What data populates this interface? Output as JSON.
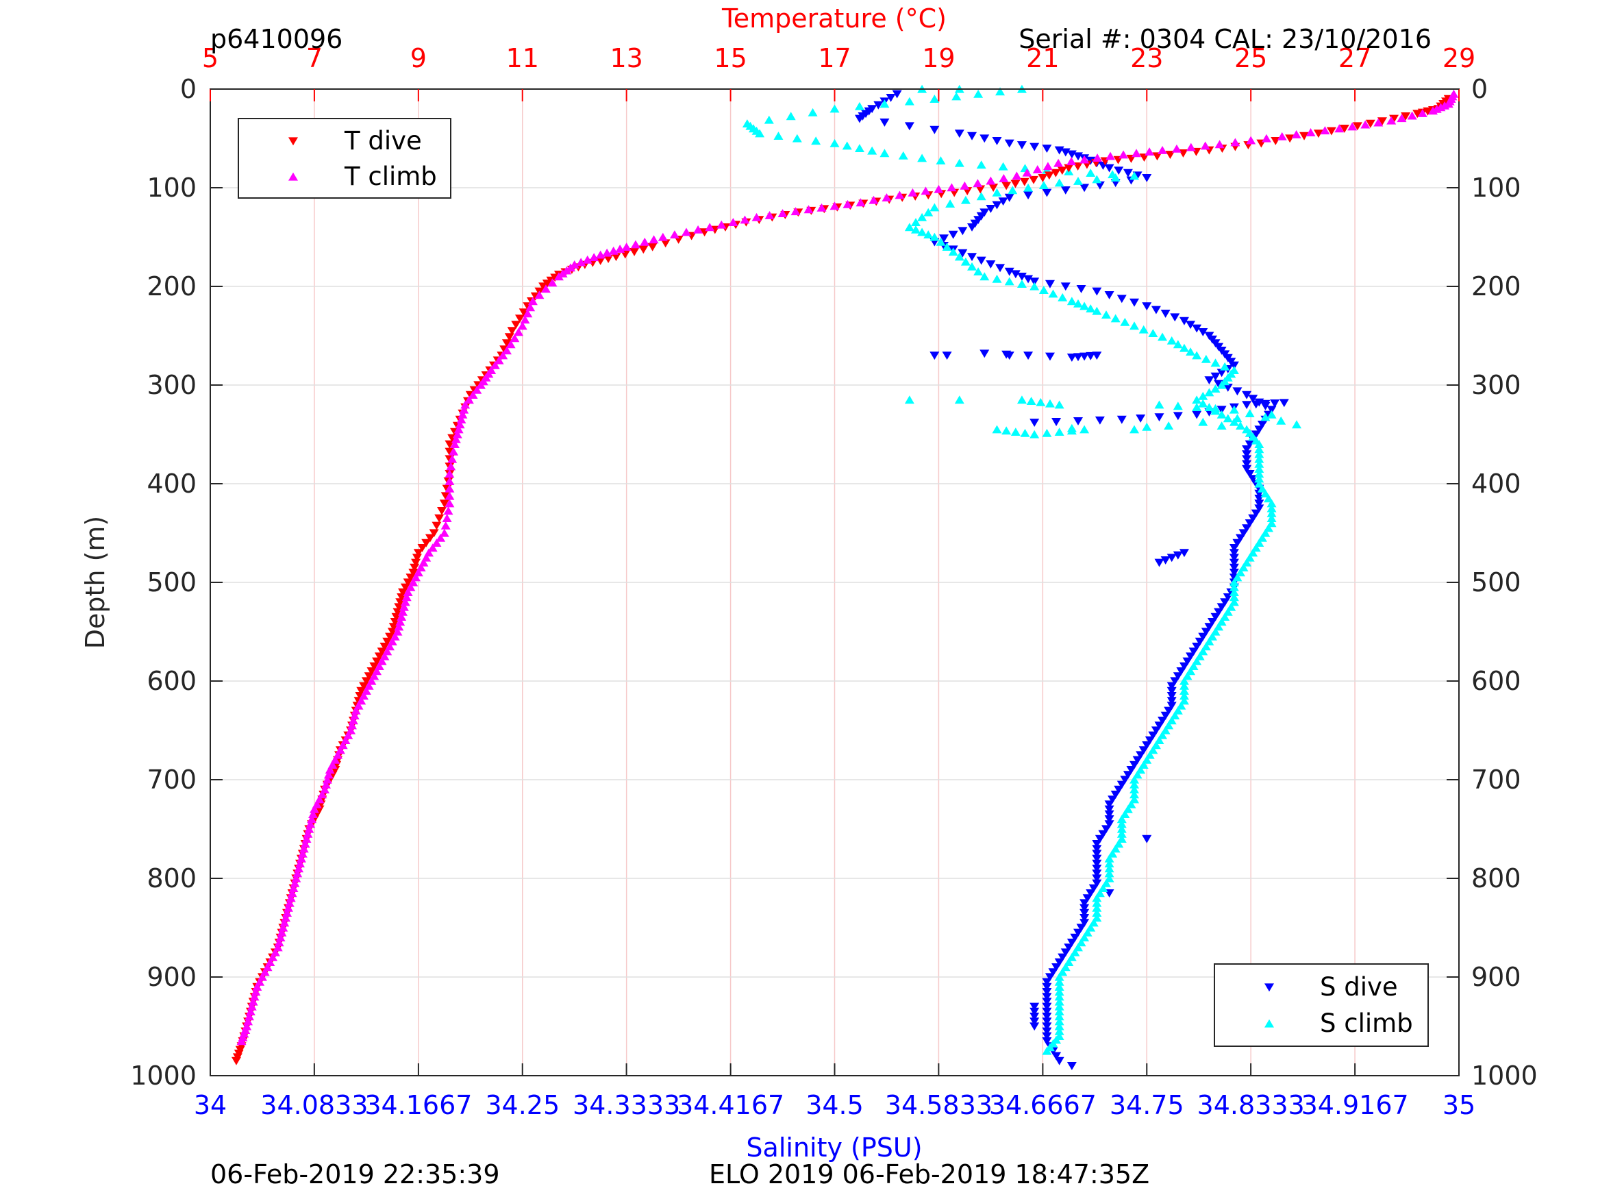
{
  "header": {
    "profile_id": "p6410096",
    "serial": "Serial #: 0304  CAL: 23/10/2016"
  },
  "footer": {
    "timestamp_left": "06-Feb-2019 22:35:39",
    "mission": "ELO 2019 06-Feb-2019 18:47:35Z"
  },
  "colors": {
    "t_dive": "#ff0000",
    "t_climb": "#ff00ff",
    "s_dive": "#0000ff",
    "s_climb": "#00ffff",
    "temp_axis": "#ff0000",
    "sal_axis": "#0000ff",
    "depth_axis": "#262626"
  },
  "chart_data": {
    "type": "scatter",
    "title": "",
    "xlabel_top": "Temperature (°C)",
    "xlabel_bottom": "Salinity (PSU)",
    "ylabel": "Depth (m)",
    "temp_range": [
      5,
      29
    ],
    "temp_ticks": [
      "5",
      "7",
      "9",
      "11",
      "13",
      "15",
      "17",
      "19",
      "21",
      "23",
      "25",
      "27",
      "29"
    ],
    "salinity_range": [
      34,
      35
    ],
    "salinity_ticks": [
      "34",
      "34.0833",
      "34.1667",
      "34.25",
      "34.3333",
      "34.4167",
      "34.5",
      "34.5833",
      "34.6667",
      "34.75",
      "34.8333",
      "34.9167",
      "35"
    ],
    "depth_range": [
      0,
      1000
    ],
    "depth_ticks": [
      "0",
      "100",
      "200",
      "300",
      "400",
      "500",
      "600",
      "700",
      "800",
      "900",
      "1000"
    ],
    "y_reversed": true,
    "grid": true,
    "legend_temperature": {
      "placement": "top-left",
      "entries": [
        "T dive",
        "T climb"
      ]
    },
    "legend_salinity": {
      "placement": "bottom-right",
      "entries": [
        "S dive",
        "S climb"
      ]
    },
    "series": [
      {
        "name": "T dive",
        "axis": "temperature",
        "marker": "triangle-down",
        "points": [
          [
            28.8,
            10
          ],
          [
            28.6,
            20
          ],
          [
            28.2,
            25
          ],
          [
            27.3,
            35
          ],
          [
            26.3,
            45
          ],
          [
            25.2,
            55
          ],
          [
            24.2,
            62
          ],
          [
            23.2,
            68
          ],
          [
            22.2,
            73
          ],
          [
            21.5,
            80
          ],
          [
            21.0,
            90
          ],
          [
            20.3,
            98
          ],
          [
            19.3,
            105
          ],
          [
            18.3,
            110
          ],
          [
            17.3,
            118
          ],
          [
            16.3,
            125
          ],
          [
            15.3,
            135
          ],
          [
            14.5,
            145
          ],
          [
            13.5,
            160
          ],
          [
            12.8,
            170
          ],
          [
            12.2,
            178
          ],
          [
            11.7,
            188
          ],
          [
            11.4,
            200
          ],
          [
            11.1,
            220
          ],
          [
            10.8,
            245
          ],
          [
            10.6,
            270
          ],
          [
            10.3,
            290
          ],
          [
            10.0,
            310
          ],
          [
            9.8,
            335
          ],
          [
            9.6,
            360
          ],
          [
            9.6,
            390
          ],
          [
            9.5,
            420
          ],
          [
            9.3,
            450
          ],
          [
            9.0,
            470
          ],
          [
            8.9,
            490
          ],
          [
            8.7,
            510
          ],
          [
            8.6,
            530
          ],
          [
            8.5,
            550
          ],
          [
            8.3,
            570
          ],
          [
            8.1,
            590
          ],
          [
            7.9,
            610
          ],
          [
            7.8,
            630
          ],
          [
            7.7,
            650
          ],
          [
            7.5,
            670
          ],
          [
            7.4,
            690
          ],
          [
            7.2,
            710
          ],
          [
            7.1,
            730
          ],
          [
            6.9,
            750
          ],
          [
            6.8,
            770
          ],
          [
            6.7,
            790
          ],
          [
            6.6,
            810
          ],
          [
            6.5,
            830
          ],
          [
            6.4,
            850
          ],
          [
            6.3,
            870
          ],
          [
            6.1,
            890
          ],
          [
            5.9,
            910
          ],
          [
            5.8,
            930
          ],
          [
            5.7,
            950
          ],
          [
            5.6,
            970
          ],
          [
            5.5,
            985
          ]
        ]
      },
      {
        "name": "T climb",
        "axis": "temperature",
        "marker": "triangle-up",
        "points": [
          [
            28.9,
            5
          ],
          [
            28.8,
            15
          ],
          [
            28.5,
            22
          ],
          [
            27.7,
            32
          ],
          [
            26.7,
            40
          ],
          [
            25.6,
            48
          ],
          [
            24.4,
            56
          ],
          [
            23.3,
            62
          ],
          [
            22.3,
            68
          ],
          [
            21.3,
            75
          ],
          [
            20.5,
            88
          ],
          [
            19.5,
            98
          ],
          [
            18.5,
            105
          ],
          [
            17.5,
            115
          ],
          [
            16.5,
            122
          ],
          [
            15.5,
            130
          ],
          [
            14.6,
            140
          ],
          [
            13.7,
            150
          ],
          [
            13.0,
            160
          ],
          [
            12.5,
            168
          ],
          [
            12.0,
            178
          ],
          [
            11.7,
            190
          ],
          [
            11.2,
            215
          ],
          [
            11.0,
            240
          ],
          [
            10.7,
            265
          ],
          [
            10.4,
            285
          ],
          [
            10.2,
            300
          ],
          [
            9.9,
            320
          ],
          [
            9.8,
            340
          ],
          [
            9.7,
            360
          ],
          [
            9.6,
            390
          ],
          [
            9.6,
            420
          ],
          [
            9.5,
            450
          ],
          [
            9.2,
            470
          ],
          [
            9.0,
            490
          ],
          [
            8.8,
            510
          ],
          [
            8.7,
            530
          ],
          [
            8.6,
            550
          ],
          [
            8.4,
            570
          ],
          [
            8.2,
            590
          ],
          [
            8.0,
            610
          ],
          [
            7.8,
            630
          ],
          [
            7.7,
            650
          ],
          [
            7.5,
            670
          ],
          [
            7.3,
            690
          ],
          [
            7.2,
            710
          ],
          [
            7.0,
            730
          ],
          [
            6.9,
            750
          ],
          [
            6.8,
            770
          ],
          [
            6.7,
            790
          ],
          [
            6.6,
            810
          ],
          [
            6.5,
            830
          ],
          [
            6.4,
            850
          ],
          [
            6.3,
            870
          ],
          [
            6.1,
            890
          ],
          [
            5.9,
            910
          ],
          [
            5.8,
            930
          ],
          [
            5.7,
            950
          ],
          [
            5.6,
            965
          ]
        ]
      },
      {
        "name": "S dive",
        "axis": "salinity",
        "marker": "triangle-down",
        "points": [
          [
            34.55,
            5
          ],
          [
            34.53,
            20
          ],
          [
            34.52,
            30
          ],
          [
            34.6,
            45
          ],
          [
            34.64,
            55
          ],
          [
            34.68,
            62
          ],
          [
            34.7,
            70
          ],
          [
            34.72,
            80
          ],
          [
            34.75,
            90
          ],
          [
            34.7,
            100
          ],
          [
            34.64,
            110
          ],
          [
            34.62,
            125
          ],
          [
            34.61,
            140
          ],
          [
            34.58,
            155
          ],
          [
            34.61,
            170
          ],
          [
            34.64,
            185
          ],
          [
            34.66,
            195
          ],
          [
            34.71,
            205
          ],
          [
            34.75,
            220
          ],
          [
            34.78,
            235
          ],
          [
            34.8,
            250
          ],
          [
            34.81,
            265
          ],
          [
            34.82,
            280
          ],
          [
            34.8,
            295
          ],
          [
            34.83,
            310
          ],
          [
            34.85,
            325
          ],
          [
            34.84,
            345
          ],
          [
            34.83,
            365
          ],
          [
            34.83,
            385
          ],
          [
            34.84,
            405
          ],
          [
            34.84,
            425
          ],
          [
            34.83,
            445
          ],
          [
            34.82,
            465
          ],
          [
            34.82,
            485
          ],
          [
            34.82,
            505
          ],
          [
            34.81,
            525
          ],
          [
            34.8,
            545
          ],
          [
            34.79,
            565
          ],
          [
            34.78,
            585
          ],
          [
            34.77,
            605
          ],
          [
            34.77,
            625
          ],
          [
            34.76,
            645
          ],
          [
            34.75,
            665
          ],
          [
            34.74,
            685
          ],
          [
            34.73,
            705
          ],
          [
            34.72,
            725
          ],
          [
            34.72,
            745
          ],
          [
            34.71,
            765
          ],
          [
            34.71,
            785
          ],
          [
            34.71,
            805
          ],
          [
            34.7,
            825
          ],
          [
            34.7,
            845
          ],
          [
            34.69,
            865
          ],
          [
            34.68,
            885
          ],
          [
            34.67,
            905
          ],
          [
            34.67,
            925
          ],
          [
            34.67,
            945
          ],
          [
            34.67,
            965
          ],
          [
            34.68,
            985
          ],
          [
            34.58,
            270
          ],
          [
            34.59,
            270
          ],
          [
            34.64,
            270
          ],
          [
            34.71,
            270
          ],
          [
            34.69,
            272
          ],
          [
            34.62,
            268
          ],
          [
            34.66,
            338
          ],
          [
            34.73,
            335
          ],
          [
            34.79,
            330
          ],
          [
            34.83,
            320
          ],
          [
            34.86,
            318
          ],
          [
            34.76,
            480
          ],
          [
            34.78,
            470
          ],
          [
            34.75,
            760
          ],
          [
            34.72,
            815
          ],
          [
            34.66,
            930
          ],
          [
            34.66,
            950
          ],
          [
            34.69,
            990
          ]
        ]
      },
      {
        "name": "S climb",
        "axis": "salinity",
        "marker": "triangle-up",
        "points": [
          [
            34.57,
            0
          ],
          [
            34.6,
            0
          ],
          [
            34.65,
            0
          ],
          [
            34.58,
            10
          ],
          [
            34.5,
            20
          ],
          [
            34.43,
            35
          ],
          [
            34.44,
            45
          ],
          [
            34.5,
            55
          ],
          [
            34.54,
            65
          ],
          [
            34.6,
            75
          ],
          [
            34.67,
            82
          ],
          [
            34.74,
            88
          ],
          [
            34.68,
            95
          ],
          [
            34.63,
            105
          ],
          [
            34.58,
            120
          ],
          [
            34.56,
            140
          ],
          [
            34.58,
            150
          ],
          [
            34.6,
            170
          ],
          [
            34.62,
            190
          ],
          [
            34.66,
            200
          ],
          [
            34.69,
            215
          ],
          [
            34.71,
            225
          ],
          [
            34.74,
            240
          ],
          [
            34.77,
            255
          ],
          [
            34.79,
            270
          ],
          [
            34.82,
            285
          ],
          [
            34.81,
            300
          ],
          [
            34.79,
            315
          ],
          [
            34.81,
            330
          ],
          [
            34.83,
            345
          ],
          [
            34.84,
            360
          ],
          [
            34.84,
            380
          ],
          [
            34.84,
            400
          ],
          [
            34.85,
            420
          ],
          [
            34.85,
            440
          ],
          [
            34.84,
            460
          ],
          [
            34.83,
            480
          ],
          [
            34.82,
            500
          ],
          [
            34.82,
            520
          ],
          [
            34.81,
            540
          ],
          [
            34.8,
            560
          ],
          [
            34.79,
            580
          ],
          [
            34.78,
            600
          ],
          [
            34.78,
            620
          ],
          [
            34.77,
            640
          ],
          [
            34.76,
            660
          ],
          [
            34.75,
            680
          ],
          [
            34.74,
            700
          ],
          [
            34.74,
            720
          ],
          [
            34.73,
            740
          ],
          [
            34.73,
            760
          ],
          [
            34.72,
            780
          ],
          [
            34.72,
            800
          ],
          [
            34.71,
            820
          ],
          [
            34.71,
            840
          ],
          [
            34.7,
            860
          ],
          [
            34.69,
            880
          ],
          [
            34.68,
            900
          ],
          [
            34.68,
            920
          ],
          [
            34.68,
            940
          ],
          [
            34.68,
            960
          ],
          [
            34.67,
            975
          ],
          [
            34.56,
            315
          ],
          [
            34.6,
            315
          ],
          [
            34.65,
            315
          ],
          [
            34.68,
            320
          ],
          [
            34.76,
            320
          ],
          [
            34.82,
            325
          ],
          [
            34.87,
            340
          ],
          [
            34.63,
            345
          ],
          [
            34.66,
            350
          ],
          [
            34.7,
            345
          ],
          [
            34.74,
            345
          ],
          [
            34.85,
            330
          ]
        ]
      }
    ]
  }
}
